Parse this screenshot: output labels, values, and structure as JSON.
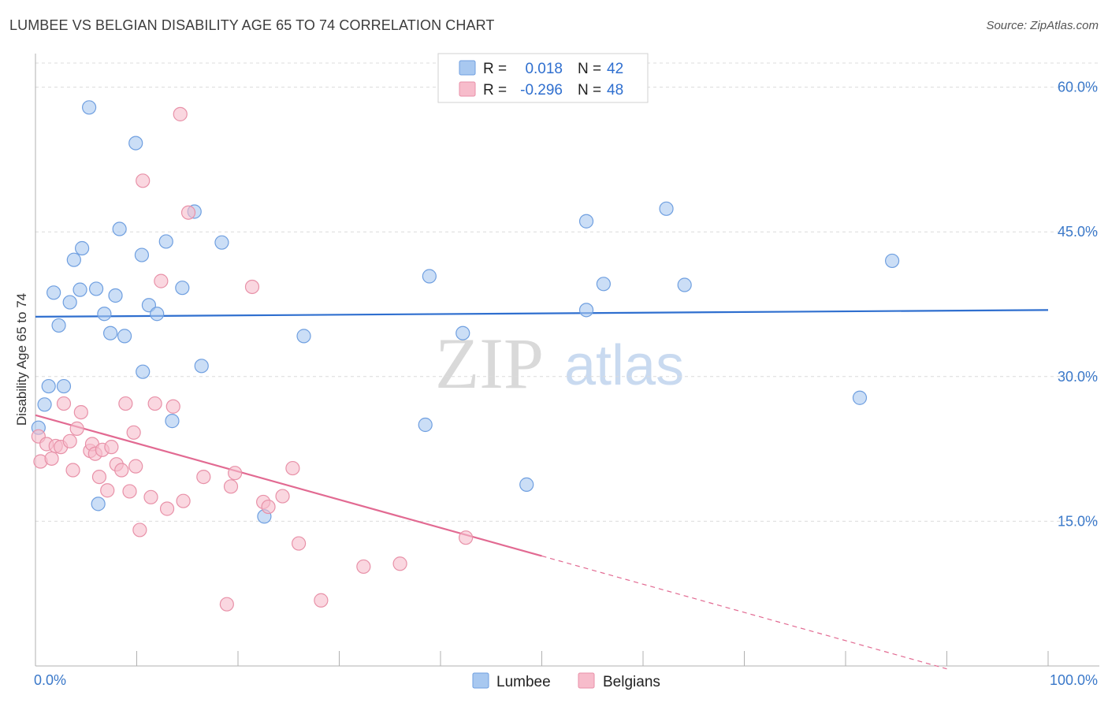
{
  "header": {
    "title": "LUMBEE VS BELGIAN DISABILITY AGE 65 TO 74 CORRELATION CHART",
    "source": "Source: ZipAtlas.com"
  },
  "watermark": {
    "zip": "ZIP",
    "atlas": "atlas"
  },
  "legend": {
    "rows": [
      {
        "r_label": "R =",
        "r_value": "0.018",
        "n_label": "N =",
        "n_value": "42",
        "color": "#a8c8f0"
      },
      {
        "r_label": "R =",
        "r_value": "-0.296",
        "n_label": "N =",
        "n_value": "48",
        "color": "#f7bccb"
      }
    ]
  },
  "bottom_legend": {
    "items": [
      {
        "label": "Lumbee",
        "color": "#a8c8f0"
      },
      {
        "label": "Belgians",
        "color": "#f7bccb"
      }
    ]
  },
  "chart_data": {
    "type": "scatter",
    "title": "LUMBEE VS BELGIAN DISABILITY AGE 65 TO 74 CORRELATION CHART",
    "xlabel": "",
    "ylabel": "Disability Age 65 to 74",
    "xlim": [
      0,
      100
    ],
    "ylim": [
      0,
      62.5
    ],
    "x_tick_labels": [
      "0.0%",
      "100.0%"
    ],
    "y_ticks": [
      15,
      30,
      45,
      60
    ],
    "y_tick_labels": [
      "15.0%",
      "30.0%",
      "45.0%",
      "60.0%"
    ],
    "grid": true,
    "series": [
      {
        "name": "Lumbee",
        "color": "#a8c8f0",
        "stroke": "#6f9fe0",
        "trend_color": "#2f6fcf",
        "trend": {
          "x0": 0,
          "y0": 36.2,
          "x1": 100,
          "y1": 36.9
        },
        "points": [
          [
            0.3,
            24.7
          ],
          [
            0.9,
            27.1
          ],
          [
            1.3,
            29.0
          ],
          [
            1.8,
            38.7
          ],
          [
            2.3,
            35.3
          ],
          [
            2.8,
            29.0
          ],
          [
            3.4,
            37.7
          ],
          [
            3.8,
            42.1
          ],
          [
            4.4,
            39.0
          ],
          [
            4.6,
            43.3
          ],
          [
            5.3,
            57.9
          ],
          [
            6.0,
            39.1
          ],
          [
            6.8,
            36.5
          ],
          [
            7.4,
            34.5
          ],
          [
            7.9,
            38.4
          ],
          [
            8.3,
            45.3
          ],
          [
            8.8,
            34.2
          ],
          [
            9.9,
            54.2
          ],
          [
            10.5,
            42.6
          ],
          [
            10.6,
            30.5
          ],
          [
            11.2,
            37.4
          ],
          [
            12.0,
            36.5
          ],
          [
            12.9,
            44.0
          ],
          [
            13.5,
            25.4
          ],
          [
            14.5,
            39.2
          ],
          [
            15.7,
            47.1
          ],
          [
            16.4,
            31.1
          ],
          [
            18.4,
            43.9
          ],
          [
            22.6,
            15.5
          ],
          [
            26.5,
            34.2
          ],
          [
            38.5,
            25.0
          ],
          [
            38.9,
            40.4
          ],
          [
            42.2,
            34.5
          ],
          [
            48.5,
            18.8
          ],
          [
            54.4,
            46.1
          ],
          [
            54.4,
            36.9
          ],
          [
            56.1,
            39.6
          ],
          [
            62.3,
            47.4
          ],
          [
            64.1,
            39.5
          ],
          [
            81.4,
            27.8
          ],
          [
            84.6,
            42.0
          ],
          [
            6.2,
            16.8
          ]
        ]
      },
      {
        "name": "Belgians",
        "color": "#f7bccb",
        "stroke": "#e891a8",
        "trend_color": "#e26a92",
        "trend": {
          "x0": 0,
          "y0": 26.0,
          "x1": 50,
          "y1": 11.4
        },
        "trend_dashed_to": {
          "x": 90,
          "y": -0.3
        },
        "points": [
          [
            0.3,
            23.8
          ],
          [
            0.5,
            21.2
          ],
          [
            1.1,
            23.0
          ],
          [
            1.6,
            21.5
          ],
          [
            2.0,
            22.8
          ],
          [
            2.5,
            22.7
          ],
          [
            2.8,
            27.2
          ],
          [
            3.4,
            23.3
          ],
          [
            3.7,
            20.3
          ],
          [
            4.1,
            24.6
          ],
          [
            4.5,
            26.3
          ],
          [
            5.4,
            22.3
          ],
          [
            5.6,
            23.0
          ],
          [
            5.9,
            22.0
          ],
          [
            6.3,
            19.6
          ],
          [
            6.6,
            22.4
          ],
          [
            7.1,
            18.2
          ],
          [
            7.5,
            22.7
          ],
          [
            8.0,
            20.9
          ],
          [
            8.5,
            20.3
          ],
          [
            8.9,
            27.2
          ],
          [
            9.3,
            18.1
          ],
          [
            9.7,
            24.2
          ],
          [
            9.9,
            20.7
          ],
          [
            10.3,
            14.1
          ],
          [
            10.6,
            50.3
          ],
          [
            11.4,
            17.5
          ],
          [
            11.8,
            27.2
          ],
          [
            12.4,
            39.9
          ],
          [
            13.0,
            16.3
          ],
          [
            13.6,
            26.9
          ],
          [
            14.3,
            57.2
          ],
          [
            14.6,
            17.1
          ],
          [
            15.1,
            47.0
          ],
          [
            16.6,
            19.6
          ],
          [
            18.9,
            6.4
          ],
          [
            19.3,
            18.6
          ],
          [
            19.7,
            20.0
          ],
          [
            21.4,
            39.3
          ],
          [
            22.5,
            17.0
          ],
          [
            23.0,
            16.5
          ],
          [
            24.4,
            17.6
          ],
          [
            25.4,
            20.5
          ],
          [
            26.0,
            12.7
          ],
          [
            28.2,
            6.8
          ],
          [
            32.4,
            10.3
          ],
          [
            36.0,
            10.6
          ],
          [
            42.5,
            13.3
          ]
        ]
      }
    ]
  }
}
